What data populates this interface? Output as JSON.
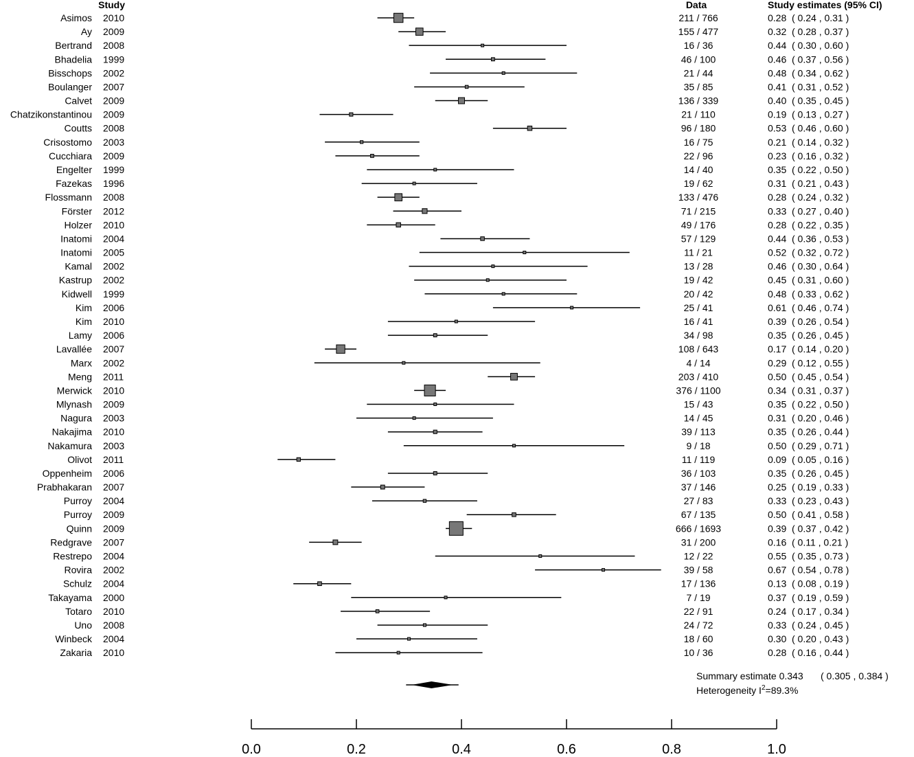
{
  "chart_data": {
    "type": "forest",
    "headers": {
      "study": "Study",
      "data": "Data",
      "estimates": "Study estimates (95% CI)"
    },
    "xlim": [
      0,
      1
    ],
    "ticks": [
      0.0,
      0.2,
      0.4,
      0.6,
      0.8,
      1.0
    ],
    "tick_labels": [
      "0.0",
      "0.2",
      "0.4",
      "0.6",
      "0.8",
      "1.0"
    ],
    "studies": [
      {
        "name": "Asimos",
        "year": "2010",
        "events": 211,
        "total": 766,
        "est": 0.28,
        "lo": 0.24,
        "hi": 0.31,
        "est_text": "0.28",
        "ci_text": "( 0.24 , 0.31 )"
      },
      {
        "name": "Ay",
        "year": "2009",
        "events": 155,
        "total": 477,
        "est": 0.32,
        "lo": 0.28,
        "hi": 0.37,
        "est_text": "0.32",
        "ci_text": "( 0.28 , 0.37 )"
      },
      {
        "name": "Bertrand",
        "year": "2008",
        "events": 16,
        "total": 36,
        "est": 0.44,
        "lo": 0.3,
        "hi": 0.6,
        "est_text": "0.44",
        "ci_text": "( 0.30 , 0.60 )"
      },
      {
        "name": "Bhadelia",
        "year": "1999",
        "events": 46,
        "total": 100,
        "est": 0.46,
        "lo": 0.37,
        "hi": 0.56,
        "est_text": "0.46",
        "ci_text": "( 0.37 , 0.56 )"
      },
      {
        "name": "Bisschops",
        "year": "2002",
        "events": 21,
        "total": 44,
        "est": 0.48,
        "lo": 0.34,
        "hi": 0.62,
        "est_text": "0.48",
        "ci_text": "( 0.34 , 0.62 )"
      },
      {
        "name": "Boulanger",
        "year": "2007",
        "events": 35,
        "total": 85,
        "est": 0.41,
        "lo": 0.31,
        "hi": 0.52,
        "est_text": "0.41",
        "ci_text": "( 0.31 , 0.52 )"
      },
      {
        "name": "Calvet",
        "year": "2009",
        "events": 136,
        "total": 339,
        "est": 0.4,
        "lo": 0.35,
        "hi": 0.45,
        "est_text": "0.40",
        "ci_text": "( 0.35 , 0.45 )"
      },
      {
        "name": "Chatzikonstantinou",
        "year": "2009",
        "events": 21,
        "total": 110,
        "est": 0.19,
        "lo": 0.13,
        "hi": 0.27,
        "est_text": "0.19",
        "ci_text": "( 0.13 , 0.27 )"
      },
      {
        "name": "Coutts",
        "year": "2008",
        "events": 96,
        "total": 180,
        "est": 0.53,
        "lo": 0.46,
        "hi": 0.6,
        "est_text": "0.53",
        "ci_text": "( 0.46 , 0.60 )"
      },
      {
        "name": "Crisostomo",
        "year": "2003",
        "events": 16,
        "total": 75,
        "est": 0.21,
        "lo": 0.14,
        "hi": 0.32,
        "est_text": "0.21",
        "ci_text": "( 0.14 , 0.32 )"
      },
      {
        "name": "Cucchiara",
        "year": "2009",
        "events": 22,
        "total": 96,
        "est": 0.23,
        "lo": 0.16,
        "hi": 0.32,
        "est_text": "0.23",
        "ci_text": "( 0.16 , 0.32 )"
      },
      {
        "name": "Engelter",
        "year": "1999",
        "events": 14,
        "total": 40,
        "est": 0.35,
        "lo": 0.22,
        "hi": 0.5,
        "est_text": "0.35",
        "ci_text": "( 0.22 , 0.50 )"
      },
      {
        "name": "Fazekas",
        "year": "1996",
        "events": 19,
        "total": 62,
        "est": 0.31,
        "lo": 0.21,
        "hi": 0.43,
        "est_text": "0.31",
        "ci_text": "( 0.21 , 0.43 )"
      },
      {
        "name": "Flossmann",
        "year": "2008",
        "events": 133,
        "total": 476,
        "est": 0.28,
        "lo": 0.24,
        "hi": 0.32,
        "est_text": "0.28",
        "ci_text": "( 0.24 , 0.32 )"
      },
      {
        "name": "Förster",
        "year": "2012",
        "events": 71,
        "total": 215,
        "est": 0.33,
        "lo": 0.27,
        "hi": 0.4,
        "est_text": "0.33",
        "ci_text": "( 0.27 , 0.40 )"
      },
      {
        "name": "Holzer",
        "year": "2010",
        "events": 49,
        "total": 176,
        "est": 0.28,
        "lo": 0.22,
        "hi": 0.35,
        "est_text": "0.28",
        "ci_text": "( 0.22 , 0.35 )"
      },
      {
        "name": "Inatomi",
        "year": "2004",
        "events": 57,
        "total": 129,
        "est": 0.44,
        "lo": 0.36,
        "hi": 0.53,
        "est_text": "0.44",
        "ci_text": "( 0.36 , 0.53 )"
      },
      {
        "name": "Inatomi",
        "year": "2005",
        "events": 11,
        "total": 21,
        "est": 0.52,
        "lo": 0.32,
        "hi": 0.72,
        "est_text": "0.52",
        "ci_text": "( 0.32 , 0.72 )"
      },
      {
        "name": "Kamal",
        "year": "2002",
        "events": 13,
        "total": 28,
        "est": 0.46,
        "lo": 0.3,
        "hi": 0.64,
        "est_text": "0.46",
        "ci_text": "( 0.30 , 0.64 )"
      },
      {
        "name": "Kastrup",
        "year": "2002",
        "events": 19,
        "total": 42,
        "est": 0.45,
        "lo": 0.31,
        "hi": 0.6,
        "est_text": "0.45",
        "ci_text": "( 0.31 , 0.60 )"
      },
      {
        "name": "Kidwell",
        "year": "1999",
        "events": 20,
        "total": 42,
        "est": 0.48,
        "lo": 0.33,
        "hi": 0.62,
        "est_text": "0.48",
        "ci_text": "( 0.33 , 0.62 )"
      },
      {
        "name": "Kim",
        "year": "2006",
        "events": 25,
        "total": 41,
        "est": 0.61,
        "lo": 0.46,
        "hi": 0.74,
        "est_text": "0.61",
        "ci_text": "( 0.46 , 0.74 )"
      },
      {
        "name": "Kim",
        "year": "2010",
        "events": 16,
        "total": 41,
        "est": 0.39,
        "lo": 0.26,
        "hi": 0.54,
        "est_text": "0.39",
        "ci_text": "( 0.26 , 0.54 )"
      },
      {
        "name": "Lamy",
        "year": "2006",
        "events": 34,
        "total": 98,
        "est": 0.35,
        "lo": 0.26,
        "hi": 0.45,
        "est_text": "0.35",
        "ci_text": "( 0.26 , 0.45 )"
      },
      {
        "name": "Lavallée",
        "year": "2007",
        "events": 108,
        "total": 643,
        "est": 0.17,
        "lo": 0.14,
        "hi": 0.2,
        "est_text": "0.17",
        "ci_text": "( 0.14 , 0.20 )"
      },
      {
        "name": "Marx",
        "year": "2002",
        "events": 4,
        "total": 14,
        "est": 0.29,
        "lo": 0.12,
        "hi": 0.55,
        "est_text": "0.29",
        "ci_text": "( 0.12 , 0.55 )"
      },
      {
        "name": "Meng",
        "year": "2011",
        "events": 203,
        "total": 410,
        "est": 0.5,
        "lo": 0.45,
        "hi": 0.54,
        "est_text": "0.50",
        "ci_text": "( 0.45 , 0.54 )"
      },
      {
        "name": "Merwick",
        "year": "2010",
        "events": 376,
        "total": 1100,
        "est": 0.34,
        "lo": 0.31,
        "hi": 0.37,
        "est_text": "0.34",
        "ci_text": "( 0.31 , 0.37 )"
      },
      {
        "name": "Mlynash",
        "year": "2009",
        "events": 15,
        "total": 43,
        "est": 0.35,
        "lo": 0.22,
        "hi": 0.5,
        "est_text": "0.35",
        "ci_text": "( 0.22 , 0.50 )"
      },
      {
        "name": "Nagura",
        "year": "2003",
        "events": 14,
        "total": 45,
        "est": 0.31,
        "lo": 0.2,
        "hi": 0.46,
        "est_text": "0.31",
        "ci_text": "( 0.20 , 0.46 )"
      },
      {
        "name": "Nakajima",
        "year": "2010",
        "events": 39,
        "total": 113,
        "est": 0.35,
        "lo": 0.26,
        "hi": 0.44,
        "est_text": "0.35",
        "ci_text": "( 0.26 , 0.44 )"
      },
      {
        "name": "Nakamura",
        "year": "2003",
        "events": 9,
        "total": 18,
        "est": 0.5,
        "lo": 0.29,
        "hi": 0.71,
        "est_text": "0.50",
        "ci_text": "( 0.29 , 0.71 )"
      },
      {
        "name": "Olivot",
        "year": "2011",
        "events": 11,
        "total": 119,
        "est": 0.09,
        "lo": 0.05,
        "hi": 0.16,
        "est_text": "0.09",
        "ci_text": "( 0.05 , 0.16 )"
      },
      {
        "name": "Oppenheim",
        "year": "2006",
        "events": 36,
        "total": 103,
        "est": 0.35,
        "lo": 0.26,
        "hi": 0.45,
        "est_text": "0.35",
        "ci_text": "( 0.26 , 0.45 )"
      },
      {
        "name": "Prabhakaran",
        "year": "2007",
        "events": 37,
        "total": 146,
        "est": 0.25,
        "lo": 0.19,
        "hi": 0.33,
        "est_text": "0.25",
        "ci_text": "( 0.19 , 0.33 )"
      },
      {
        "name": "Purroy",
        "year": "2004",
        "events": 27,
        "total": 83,
        "est": 0.33,
        "lo": 0.23,
        "hi": 0.43,
        "est_text": "0.33",
        "ci_text": "( 0.23 , 0.43 )"
      },
      {
        "name": "Purroy",
        "year": "2009",
        "events": 67,
        "total": 135,
        "est": 0.5,
        "lo": 0.41,
        "hi": 0.58,
        "est_text": "0.50",
        "ci_text": "( 0.41 , 0.58 )"
      },
      {
        "name": "Quinn",
        "year": "2009",
        "events": 666,
        "total": 1693,
        "est": 0.39,
        "lo": 0.37,
        "hi": 0.42,
        "est_text": "0.39",
        "ci_text": "( 0.37 , 0.42 )"
      },
      {
        "name": "Redgrave",
        "year": "2007",
        "events": 31,
        "total": 200,
        "est": 0.16,
        "lo": 0.11,
        "hi": 0.21,
        "est_text": "0.16",
        "ci_text": "( 0.11 , 0.21 )"
      },
      {
        "name": "Restrepo",
        "year": "2004",
        "events": 12,
        "total": 22,
        "est": 0.55,
        "lo": 0.35,
        "hi": 0.73,
        "est_text": "0.55",
        "ci_text": "( 0.35 , 0.73 )"
      },
      {
        "name": "Rovira",
        "year": "2002",
        "events": 39,
        "total": 58,
        "est": 0.67,
        "lo": 0.54,
        "hi": 0.78,
        "est_text": "0.67",
        "ci_text": "( 0.54 , 0.78 )"
      },
      {
        "name": "Schulz",
        "year": "2004",
        "events": 17,
        "total": 136,
        "est": 0.13,
        "lo": 0.08,
        "hi": 0.19,
        "est_text": "0.13",
        "ci_text": "( 0.08 , 0.19 )"
      },
      {
        "name": "Takayama",
        "year": "2000",
        "events": 7,
        "total": 19,
        "est": 0.37,
        "lo": 0.19,
        "hi": 0.59,
        "est_text": "0.37",
        "ci_text": "( 0.19 , 0.59 )"
      },
      {
        "name": "Totaro",
        "year": "2010",
        "events": 22,
        "total": 91,
        "est": 0.24,
        "lo": 0.17,
        "hi": 0.34,
        "est_text": "0.24",
        "ci_text": "( 0.17 , 0.34 )"
      },
      {
        "name": "Uno",
        "year": "2008",
        "events": 24,
        "total": 72,
        "est": 0.33,
        "lo": 0.24,
        "hi": 0.45,
        "est_text": "0.33",
        "ci_text": "( 0.24 , 0.45 )"
      },
      {
        "name": "Winbeck",
        "year": "2004",
        "events": 18,
        "total": 60,
        "est": 0.3,
        "lo": 0.2,
        "hi": 0.43,
        "est_text": "0.30",
        "ci_text": "( 0.20 , 0.43 )"
      },
      {
        "name": "Zakaria",
        "year": "2010",
        "events": 10,
        "total": 36,
        "est": 0.28,
        "lo": 0.16,
        "hi": 0.44,
        "est_text": "0.28",
        "ci_text": "( 0.16 , 0.44 )"
      }
    ],
    "summary": {
      "label": "Summary estimate 0.343",
      "ci_text": "( 0.305 , 0.384 )",
      "est": 0.343,
      "lo": 0.305,
      "hi": 0.384
    },
    "heterogeneity": {
      "prefix": "Heterogeneity I",
      "superscript": "2",
      "value": "=89.3%"
    },
    "colors": {
      "box_fill": "#777777",
      "line": "#000000"
    }
  }
}
